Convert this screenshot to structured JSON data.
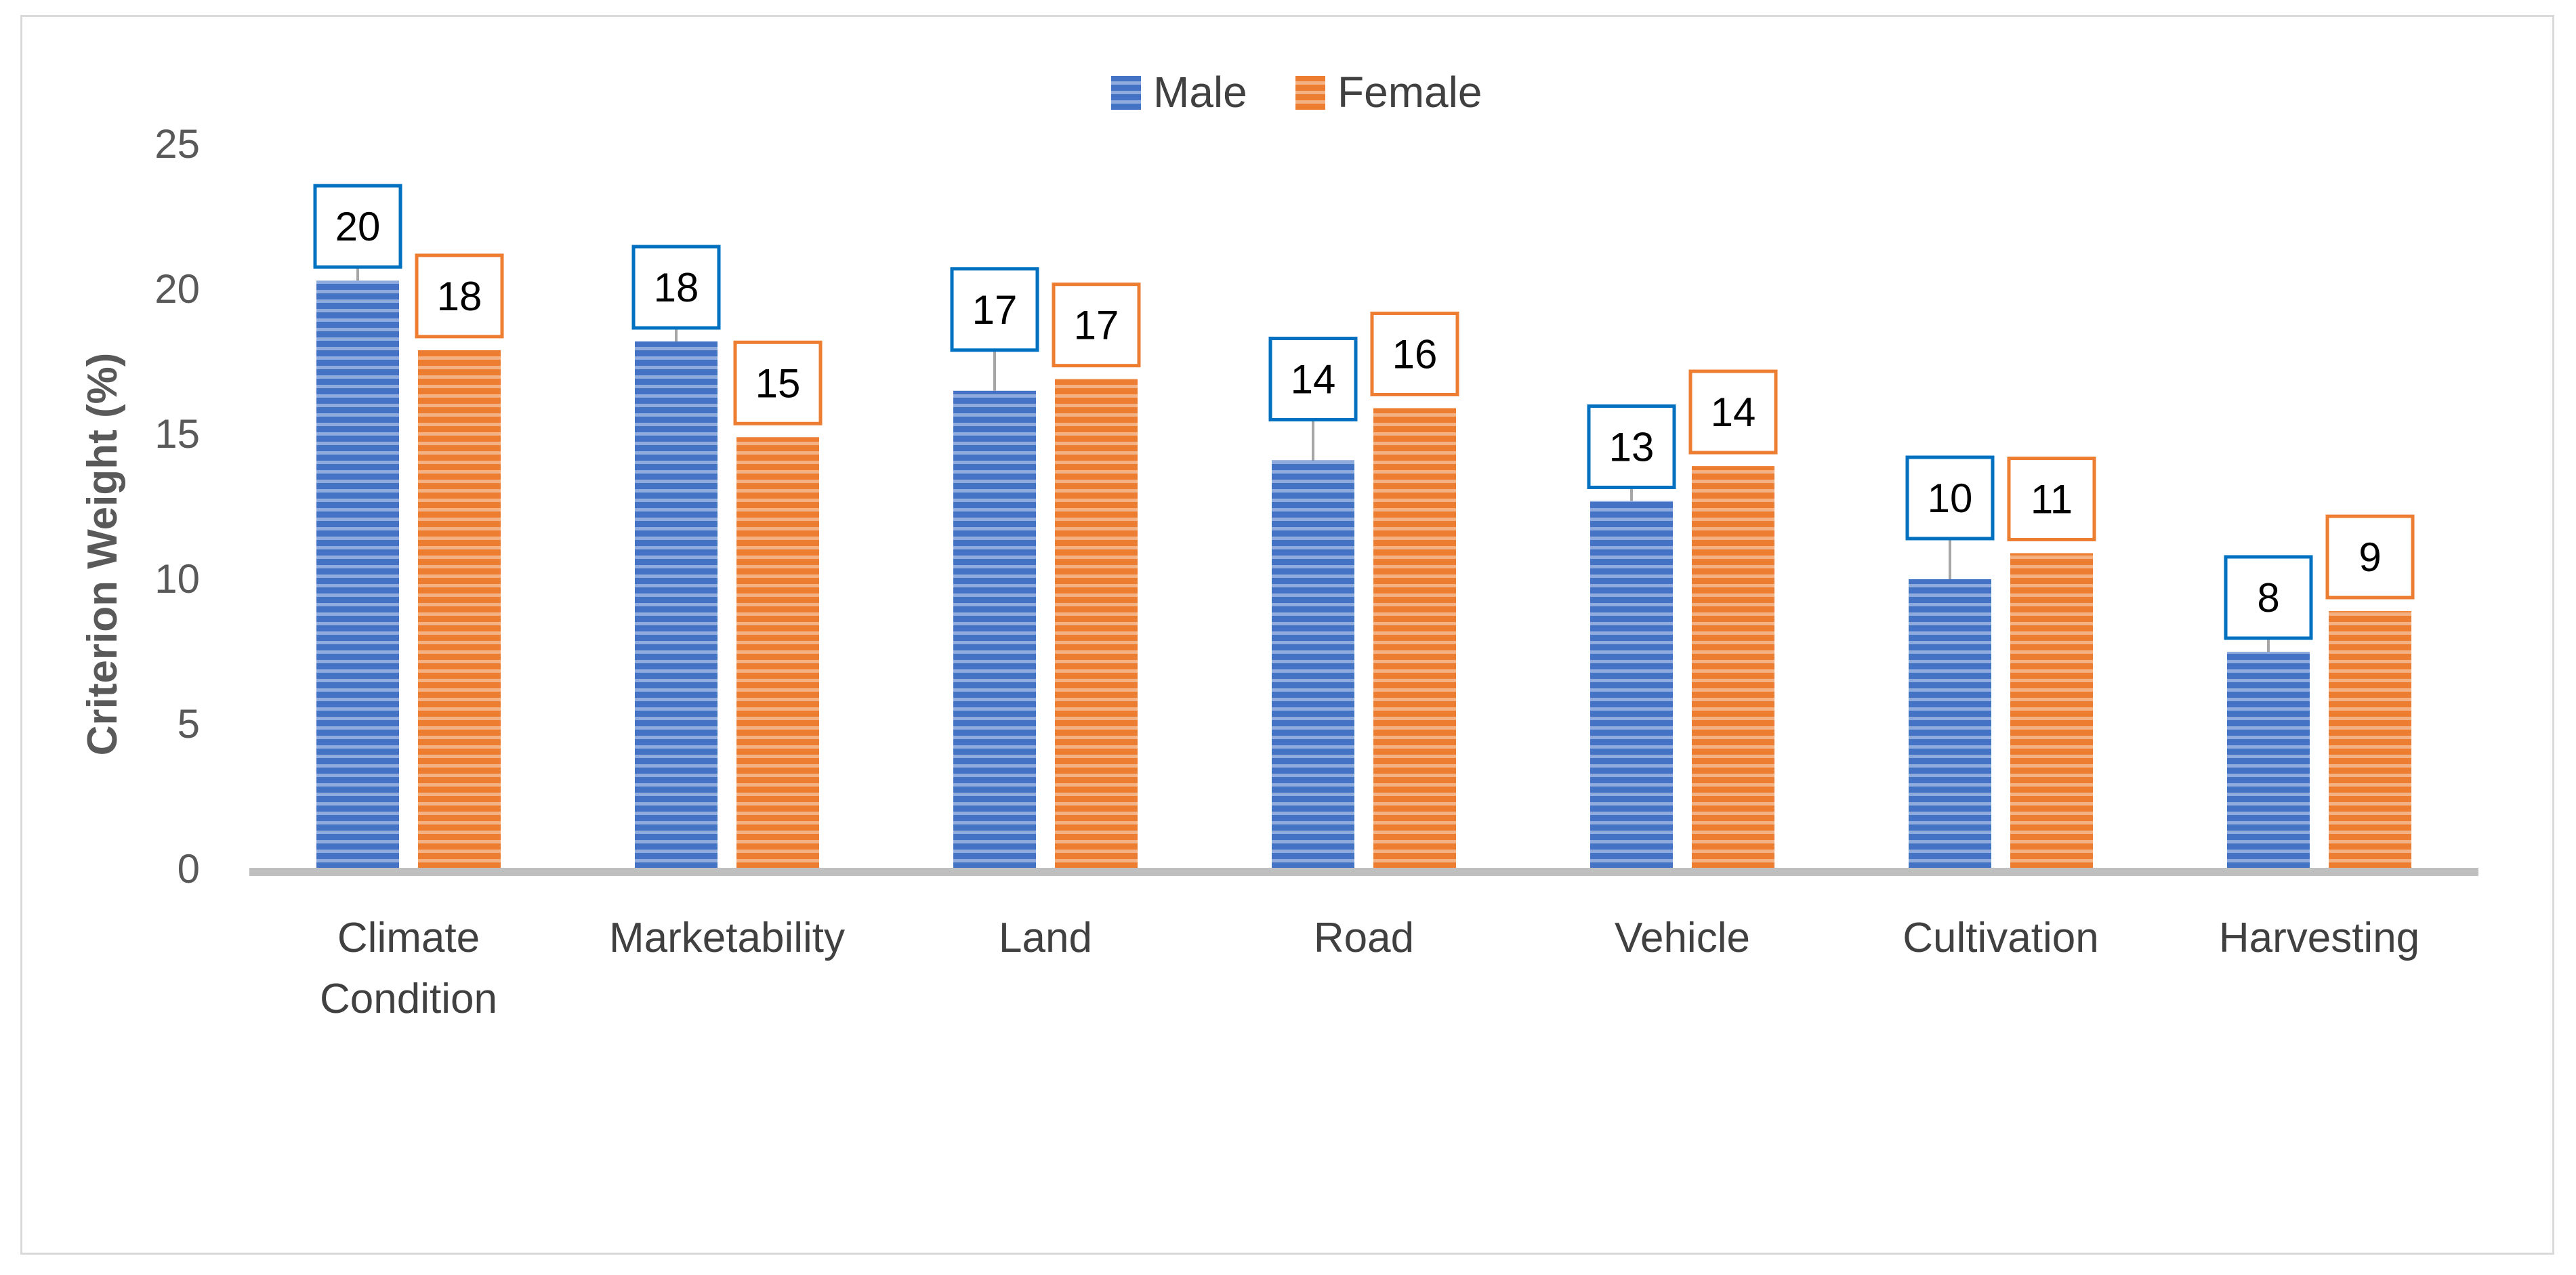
{
  "chart_data": {
    "type": "bar",
    "title": "",
    "xlabel": "",
    "ylabel": "Criterion Weight (%)",
    "ylim": [
      0,
      25
    ],
    "yticks": [
      0,
      5,
      10,
      15,
      20,
      25
    ],
    "grid": false,
    "legend_position": "top-center",
    "categories": [
      [
        "Climate",
        "Condition"
      ],
      [
        "Marketability"
      ],
      [
        "Land"
      ],
      [
        "Road"
      ],
      [
        "Vehicle"
      ],
      [
        "Cultivation"
      ],
      [
        "Harvesting"
      ]
    ],
    "series": [
      {
        "name": "Male",
        "color": "#4472c4",
        "stripe_color": "#8faadc",
        "label_border": "#0070c0",
        "values": [
          20.3,
          18.2,
          16.5,
          14.1,
          12.7,
          10.0,
          7.5
        ],
        "labels": [
          "20",
          "18",
          "17",
          "14",
          "13",
          "10",
          "8"
        ]
      },
      {
        "name": "Female",
        "color": "#ed7d31",
        "stripe_color": "#f4b183",
        "label_border": "#ed7d31",
        "values": [
          17.9,
          14.9,
          16.9,
          15.9,
          13.9,
          10.9,
          8.9
        ],
        "labels": [
          "18",
          "15",
          "17",
          "16",
          "14",
          "11",
          "9"
        ]
      }
    ]
  }
}
